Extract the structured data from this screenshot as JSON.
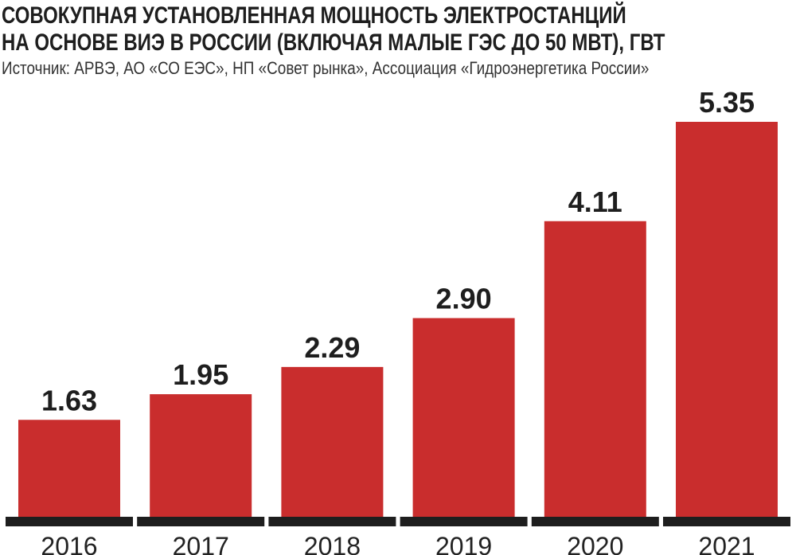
{
  "chart_data": {
    "type": "bar",
    "title_lines": [
      "СОВОКУПНАЯ УСТАНОВЛЕННАЯ МОЩНОСТЬ ЭЛЕКТРОСТАНЦИЙ",
      "НА ОСНОВЕ ВИЭ В РОССИИ (ВКЛЮЧАЯ МАЛЫЕ ГЭС ДО 50 МВТ), ГВТ"
    ],
    "source": "Источник: АРВЭ, АО «СО ЕЭС», НП «Совет рынка», Ассоциация «Гидроэнергетика России»",
    "categories": [
      "2016",
      "2017",
      "2018",
      "2019",
      "2020",
      "2021"
    ],
    "values": [
      1.63,
      1.95,
      2.29,
      2.9,
      4.11,
      5.35
    ],
    "value_labels": [
      "1.63",
      "1.95",
      "2.29",
      "2.90",
      "4.11",
      "5.35"
    ],
    "xlabel": "",
    "ylabel": "",
    "ylim": [
      0.42,
      5.35
    ],
    "grid": false,
    "colors": {
      "bar": "#c92d2d",
      "baseline": "#1e1e1e"
    }
  }
}
